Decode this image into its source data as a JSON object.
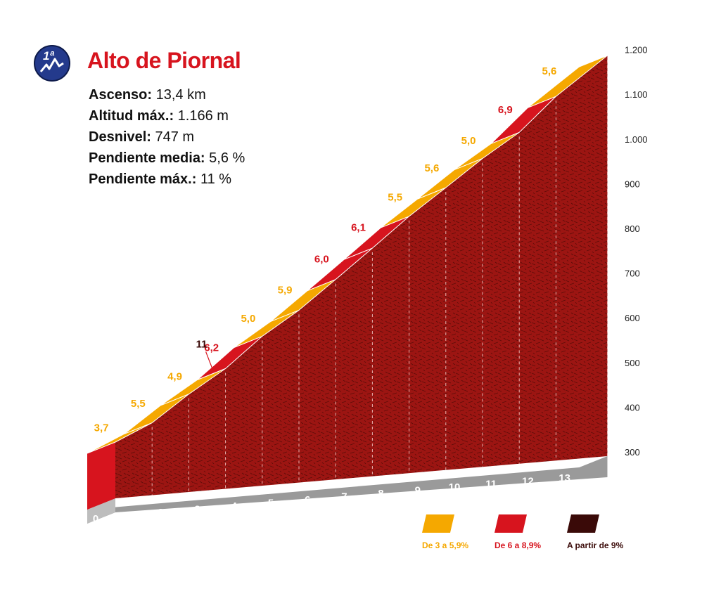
{
  "header": {
    "title": "Alto de Piornal",
    "badge": "1ª"
  },
  "stats": [
    {
      "label": "Ascenso:",
      "value": "13,4 km"
    },
    {
      "label": "Altitud máx.:",
      "value": "1.166 m"
    },
    {
      "label": "Desnivel:",
      "value": "747 m"
    },
    {
      "label": "Pendiente media:",
      "value": "5,6 %"
    },
    {
      "label": "Pendiente máx.:",
      "value": "11 %"
    }
  ],
  "chart_data": {
    "type": "area",
    "x_unit": "km",
    "x_ticks": [
      "0",
      "1",
      "2",
      "3",
      "4",
      "5",
      "6",
      "7",
      "8",
      "9",
      "10",
      "11",
      "12",
      "13"
    ],
    "y_ticks": [
      "300",
      "400",
      "500",
      "600",
      "700",
      "800",
      "900",
      "1.000",
      "1.100",
      "1.200"
    ],
    "y_values": [
      300,
      400,
      500,
      600,
      700,
      800,
      900,
      1000,
      1100,
      1200
    ],
    "start_altitude": 419,
    "segments": [
      {
        "km_from": 0,
        "km_to": 1,
        "gradient": "3,7",
        "category": "low"
      },
      {
        "km_from": 1,
        "km_to": 2,
        "gradient": "5,5",
        "category": "low"
      },
      {
        "km_from": 2,
        "km_to": 3,
        "gradient": "4,9",
        "category": "low"
      },
      {
        "km_from": 3,
        "km_to": 4,
        "gradient": "6,2",
        "category": "mid"
      },
      {
        "km_from": 4,
        "km_to": 5,
        "gradient": "5,0",
        "category": "low"
      },
      {
        "km_from": 5,
        "km_to": 6,
        "gradient": "5,9",
        "category": "low"
      },
      {
        "km_from": 6,
        "km_to": 7,
        "gradient": "6,0",
        "category": "mid"
      },
      {
        "km_from": 7,
        "km_to": 8,
        "gradient": "6,1",
        "category": "mid"
      },
      {
        "km_from": 8,
        "km_to": 9,
        "gradient": "5,5",
        "category": "low"
      },
      {
        "km_from": 9,
        "km_to": 10,
        "gradient": "5,6",
        "category": "low"
      },
      {
        "km_from": 10,
        "km_to": 11,
        "gradient": "5,0",
        "category": "low"
      },
      {
        "km_from": 11,
        "km_to": 12,
        "gradient": "6,9",
        "category": "mid"
      },
      {
        "km_from": 12,
        "km_to": 13.4,
        "gradient": "5,6",
        "category": "low"
      }
    ],
    "max_annotation": {
      "label": "11",
      "km": 3.4
    },
    "legend": [
      {
        "label": "De 3 a 5,9%",
        "color": "#f5a800",
        "category": "low"
      },
      {
        "label": "De 6 a 8,9%",
        "color": "#d7141e",
        "category": "mid"
      },
      {
        "label": "A partir de 9%",
        "color": "#3a0a08",
        "category": "high"
      }
    ]
  }
}
